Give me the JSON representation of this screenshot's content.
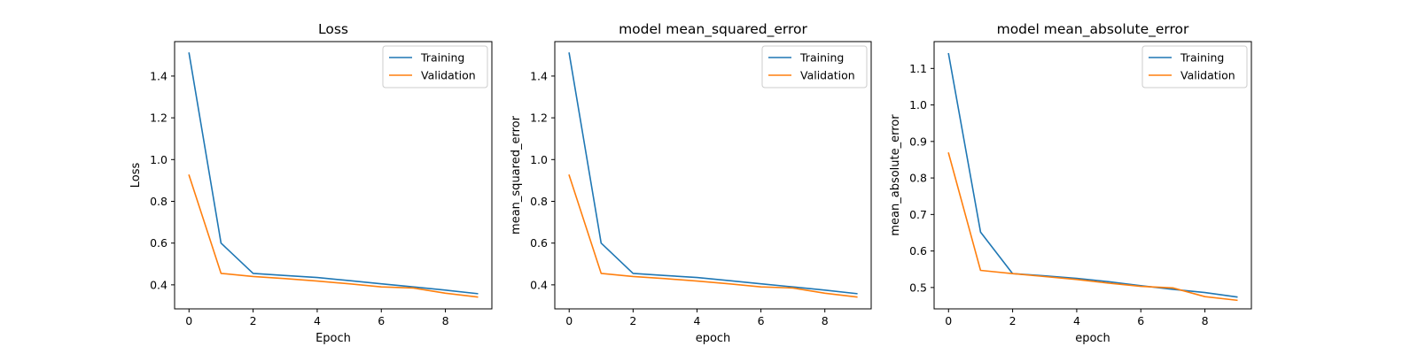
{
  "chart_data": [
    {
      "type": "line",
      "title": "Loss",
      "xlabel": "Epoch",
      "ylabel": "Loss",
      "xlim": [
        -0.45,
        9.45
      ],
      "ylim": [
        0.285,
        1.565
      ],
      "xticks": [
        0,
        2,
        4,
        6,
        8
      ],
      "yticks": [
        0.4,
        0.6,
        0.8,
        1.0,
        1.2,
        1.4
      ],
      "ytick_labels": [
        "0.4",
        "0.6",
        "0.8",
        "1.0",
        "1.2",
        "1.4"
      ],
      "legend_position": "top-right",
      "x": [
        0,
        1,
        2,
        3,
        4,
        5,
        6,
        7,
        8,
        9
      ],
      "series": [
        {
          "name": "Training",
          "color": "#1f77b4",
          "values": [
            1.51,
            0.6,
            0.455,
            0.445,
            0.435,
            0.42,
            0.405,
            0.39,
            0.375,
            0.358
          ]
        },
        {
          "name": "Validation",
          "color": "#ff7f0e",
          "values": [
            0.925,
            0.455,
            0.44,
            0.43,
            0.418,
            0.405,
            0.39,
            0.385,
            0.36,
            0.342
          ]
        }
      ]
    },
    {
      "type": "line",
      "title": "model mean_squared_error",
      "xlabel": "epoch",
      "ylabel": "mean_squared_error",
      "xlim": [
        -0.45,
        9.45
      ],
      "ylim": [
        0.285,
        1.565
      ],
      "xticks": [
        0,
        2,
        4,
        6,
        8
      ],
      "yticks": [
        0.4,
        0.6,
        0.8,
        1.0,
        1.2,
        1.4
      ],
      "ytick_labels": [
        "0.4",
        "0.6",
        "0.8",
        "1.0",
        "1.2",
        "1.4"
      ],
      "legend_position": "top-right",
      "x": [
        0,
        1,
        2,
        3,
        4,
        5,
        6,
        7,
        8,
        9
      ],
      "series": [
        {
          "name": "Training",
          "color": "#1f77b4",
          "values": [
            1.51,
            0.6,
            0.455,
            0.445,
            0.435,
            0.42,
            0.405,
            0.39,
            0.375,
            0.358
          ]
        },
        {
          "name": "Validation",
          "color": "#ff7f0e",
          "values": [
            0.925,
            0.455,
            0.44,
            0.43,
            0.418,
            0.405,
            0.39,
            0.385,
            0.36,
            0.342
          ]
        }
      ]
    },
    {
      "type": "line",
      "title": "model mean_absolute_error",
      "xlabel": "epoch",
      "ylabel": "mean_absolute_error",
      "xlim": [
        -0.45,
        9.45
      ],
      "ylim": [
        0.4415,
        1.1735
      ],
      "xticks": [
        0,
        2,
        4,
        6,
        8
      ],
      "yticks": [
        0.5,
        0.6,
        0.7,
        0.8,
        0.9,
        1.0,
        1.1
      ],
      "ytick_labels": [
        "0.5",
        "0.6",
        "0.7",
        "0.8",
        "0.9",
        "1.0",
        "1.1"
      ],
      "legend_position": "top-right",
      "x": [
        0,
        1,
        2,
        3,
        4,
        5,
        6,
        7,
        8,
        9
      ],
      "series": [
        {
          "name": "Training",
          "color": "#1f77b4",
          "values": [
            1.14,
            0.652,
            0.538,
            0.532,
            0.525,
            0.516,
            0.505,
            0.495,
            0.486,
            0.474
          ]
        },
        {
          "name": "Validation",
          "color": "#ff7f0e",
          "values": [
            0.868,
            0.547,
            0.538,
            0.53,
            0.522,
            0.512,
            0.503,
            0.499,
            0.475,
            0.465
          ]
        }
      ]
    }
  ]
}
